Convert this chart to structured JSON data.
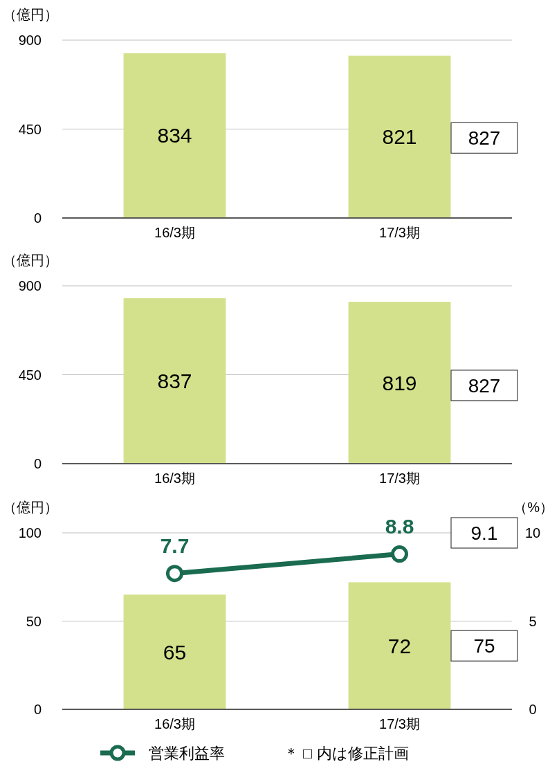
{
  "chart_data": [
    {
      "type": "bar",
      "ylabel": "（億円）",
      "categories": [
        "16/3期",
        "17/3期"
      ],
      "values": [
        834,
        821
      ],
      "color": "#d4e18c",
      "ylim": [
        0,
        900
      ],
      "yticks": [
        0,
        450,
        900
      ],
      "grid": "y",
      "data_labels": true,
      "annotations": [
        "827"
      ]
    },
    {
      "type": "bar",
      "ylabel": "（億円）",
      "categories": [
        "16/3期",
        "17/3期"
      ],
      "values": [
        837,
        819
      ],
      "color": "#d4e18c",
      "ylim": [
        0,
        900
      ],
      "yticks": [
        0,
        450,
        900
      ],
      "grid": "y",
      "data_labels": true,
      "annotations": [
        "827"
      ]
    },
    {
      "type": "bar",
      "ylabel": "（億円）",
      "y2label": "（%）",
      "categories": [
        "16/3期",
        "17/3期"
      ],
      "series": [
        {
          "color": "#d4e18c",
          "values": [
            65,
            72
          ]
        },
        {
          "type": "line",
          "name": "営業利益率",
          "color": "#1a6b4f",
          "axis": "y2",
          "values": [
            7.7,
            8.8
          ]
        }
      ],
      "ylim": [
        0,
        100
      ],
      "yticks": [
        0,
        50,
        100
      ],
      "y2lim": [
        0,
        10
      ],
      "y2ticks": [
        0,
        5,
        10
      ],
      "grid": "y",
      "data_labels": true,
      "marker": "circle",
      "legend": "bottom",
      "annotations": [
        "9.1",
        "75",
        "＊ □ 内は修正計画"
      ]
    }
  ]
}
